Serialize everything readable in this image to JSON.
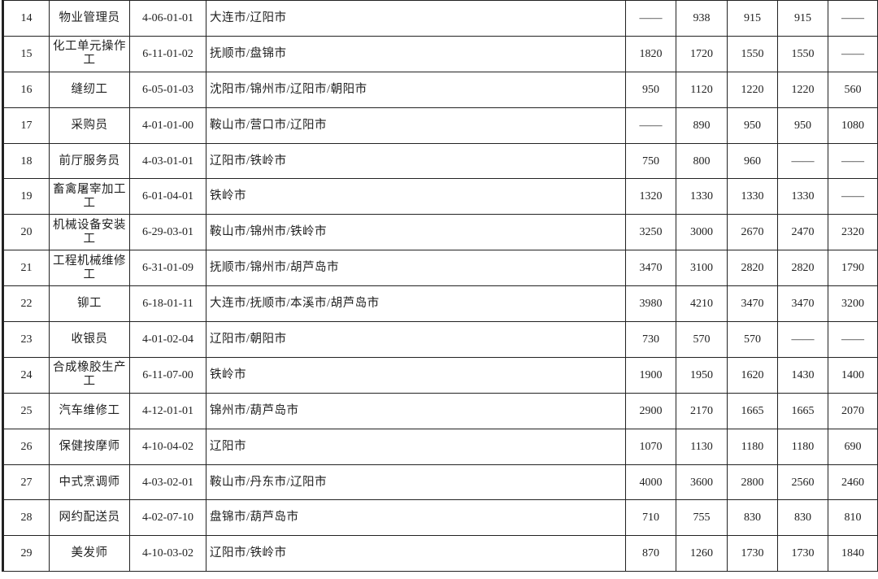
{
  "table": {
    "rows": [
      {
        "no": "14",
        "name": "物业管理员",
        "code": "4-06-01-01",
        "cities": "大连市/辽阳市",
        "values": [
          "——",
          "938",
          "915",
          "915",
          "——"
        ]
      },
      {
        "no": "15",
        "name": "化工单元操作工",
        "code": "6-11-01-02",
        "cities": "抚顺市/盘锦市",
        "values": [
          "1820",
          "1720",
          "1550",
          "1550",
          "——"
        ]
      },
      {
        "no": "16",
        "name": "缝纫工",
        "code": "6-05-01-03",
        "cities": "沈阳市/锦州市/辽阳市/朝阳市",
        "values": [
          "950",
          "1120",
          "1220",
          "1220",
          "560"
        ]
      },
      {
        "no": "17",
        "name": "采购员",
        "code": "4-01-01-00",
        "cities": "鞍山市/营口市/辽阳市",
        "values": [
          "——",
          "890",
          "950",
          "950",
          "1080"
        ]
      },
      {
        "no": "18",
        "name": "前厅服务员",
        "code": "4-03-01-01",
        "cities": "辽阳市/铁岭市",
        "values": [
          "750",
          "800",
          "960",
          "——",
          "——"
        ]
      },
      {
        "no": "19",
        "name": "畜禽屠宰加工工",
        "code": "6-01-04-01",
        "cities": "铁岭市",
        "values": [
          "1320",
          "1330",
          "1330",
          "1330",
          "——"
        ]
      },
      {
        "no": "20",
        "name": "机械设备安装工",
        "code": "6-29-03-01",
        "cities": "鞍山市/锦州市/铁岭市",
        "values": [
          "3250",
          "3000",
          "2670",
          "2470",
          "2320"
        ]
      },
      {
        "no": "21",
        "name": "工程机械维修工",
        "code": "6-31-01-09",
        "cities": "抚顺市/锦州市/胡芦岛市",
        "values": [
          "3470",
          "3100",
          "2820",
          "2820",
          "1790"
        ]
      },
      {
        "no": "22",
        "name": "铆工",
        "code": "6-18-01-11",
        "cities": "大连市/抚顺市/本溪市/胡芦岛市",
        "values": [
          "3980",
          "4210",
          "3470",
          "3470",
          "3200"
        ]
      },
      {
        "no": "23",
        "name": "收银员",
        "code": "4-01-02-04",
        "cities": "辽阳市/朝阳市",
        "values": [
          "730",
          "570",
          "570",
          "——",
          "——"
        ]
      },
      {
        "no": "24",
        "name": "合成橡胶生产工",
        "code": "6-11-07-00",
        "cities": "铁岭市",
        "values": [
          "1900",
          "1950",
          "1620",
          "1430",
          "1400"
        ]
      },
      {
        "no": "25",
        "name": "汽车维修工",
        "code": "4-12-01-01",
        "cities": "锦州市/葫芦岛市",
        "values": [
          "2900",
          "2170",
          "1665",
          "1665",
          "2070"
        ]
      },
      {
        "no": "26",
        "name": "保健按摩师",
        "code": "4-10-04-02",
        "cities": "辽阳市",
        "values": [
          "1070",
          "1130",
          "1180",
          "1180",
          "690"
        ]
      },
      {
        "no": "27",
        "name": "中式烹调师",
        "code": "4-03-02-01",
        "cities": "鞍山市/丹东市/辽阳市",
        "values": [
          "4000",
          "3600",
          "2800",
          "2560",
          "2460"
        ]
      },
      {
        "no": "28",
        "name": "网约配送员",
        "code": "4-02-07-10",
        "cities": "盘锦市/葫芦岛市",
        "values": [
          "710",
          "755",
          "830",
          "830",
          "810"
        ]
      },
      {
        "no": "29",
        "name": "美发师",
        "code": "4-10-03-02",
        "cities": "辽阳市/铁岭市",
        "values": [
          "870",
          "1260",
          "1730",
          "1730",
          "1840"
        ]
      }
    ]
  }
}
